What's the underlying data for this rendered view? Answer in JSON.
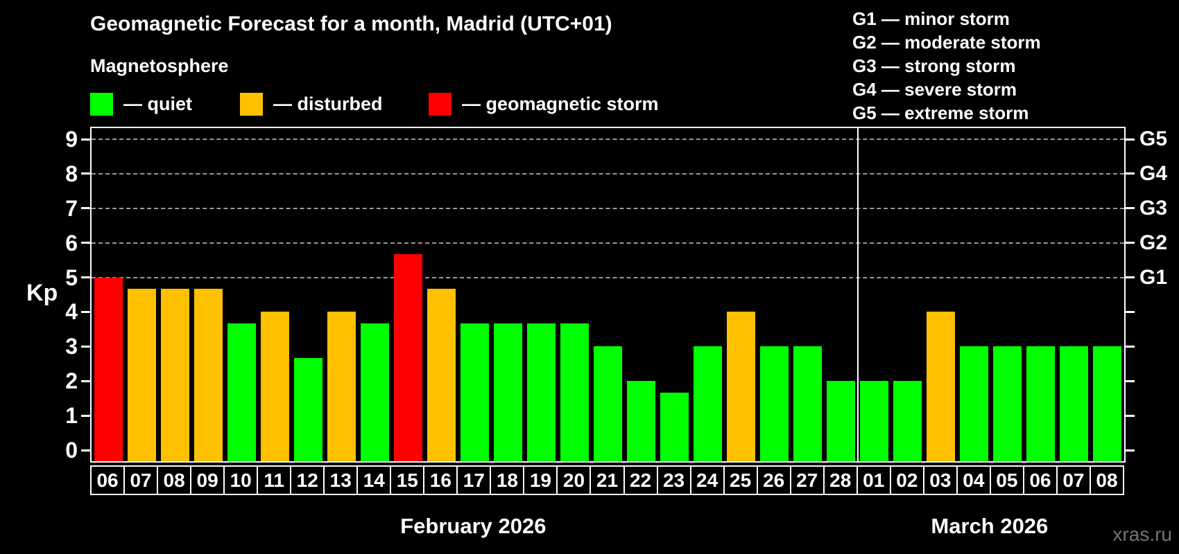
{
  "title": "Geomagnetic Forecast for a month, Madrid (UTC+01)",
  "subtitle": "Magnetosphere",
  "legend": {
    "items": [
      {
        "name": "quiet",
        "label": "— quiet",
        "color": "#00ff00"
      },
      {
        "name": "disturbed",
        "label": "— disturbed",
        "color": "#ffc000"
      },
      {
        "name": "storm",
        "label": "— geomagnetic storm",
        "color": "#ff0000"
      }
    ]
  },
  "g_legend": [
    "G1 — minor storm",
    "G2 — moderate storm",
    "G3 — strong storm",
    "G4 — severe storm",
    "G5 — extreme storm"
  ],
  "watermark": "xras.ru",
  "chart_data": {
    "type": "bar",
    "title": "Geomagnetic Forecast for a month, Madrid (UTC+01)",
    "ylabel": "Kp",
    "ylim": [
      0,
      9
    ],
    "yticks": [
      0,
      1,
      2,
      3,
      4,
      5,
      6,
      7,
      8,
      9
    ],
    "gridlines_at": [
      5,
      6,
      7,
      8,
      9
    ],
    "grid": "dashed",
    "legend_position": "top",
    "right_axis": [
      {
        "kp": 9,
        "label": "G5"
      },
      {
        "kp": 8,
        "label": "G4"
      },
      {
        "kp": 7,
        "label": "G3"
      },
      {
        "kp": 6,
        "label": "G2"
      },
      {
        "kp": 5,
        "label": "G1"
      }
    ],
    "status_colors": {
      "quiet": "#00ff00",
      "disturbed": "#ffc000",
      "storm": "#ff0000"
    },
    "months": [
      {
        "label": "February 2026",
        "bars": [
          {
            "day": "06",
            "kp": 5.0,
            "status": "storm"
          },
          {
            "day": "07",
            "kp": 4.67,
            "status": "disturbed"
          },
          {
            "day": "08",
            "kp": 4.67,
            "status": "disturbed"
          },
          {
            "day": "09",
            "kp": 4.67,
            "status": "disturbed"
          },
          {
            "day": "10",
            "kp": 3.67,
            "status": "quiet"
          },
          {
            "day": "11",
            "kp": 4.0,
            "status": "disturbed"
          },
          {
            "day": "12",
            "kp": 2.67,
            "status": "quiet"
          },
          {
            "day": "13",
            "kp": 4.0,
            "status": "disturbed"
          },
          {
            "day": "14",
            "kp": 3.67,
            "status": "quiet"
          },
          {
            "day": "15",
            "kp": 5.67,
            "status": "storm"
          },
          {
            "day": "16",
            "kp": 4.67,
            "status": "disturbed"
          },
          {
            "day": "17",
            "kp": 3.67,
            "status": "quiet"
          },
          {
            "day": "18",
            "kp": 3.67,
            "status": "quiet"
          },
          {
            "day": "19",
            "kp": 3.67,
            "status": "quiet"
          },
          {
            "day": "20",
            "kp": 3.67,
            "status": "quiet"
          },
          {
            "day": "21",
            "kp": 3.0,
            "status": "quiet"
          },
          {
            "day": "22",
            "kp": 2.0,
            "status": "quiet"
          },
          {
            "day": "23",
            "kp": 1.67,
            "status": "quiet"
          },
          {
            "day": "24",
            "kp": 3.0,
            "status": "quiet"
          },
          {
            "day": "25",
            "kp": 4.0,
            "status": "disturbed"
          },
          {
            "day": "26",
            "kp": 3.0,
            "status": "quiet"
          },
          {
            "day": "27",
            "kp": 3.0,
            "status": "quiet"
          },
          {
            "day": "28",
            "kp": 2.0,
            "status": "quiet"
          }
        ]
      },
      {
        "label": "March 2026",
        "bars": [
          {
            "day": "01",
            "kp": 2.0,
            "status": "quiet"
          },
          {
            "day": "02",
            "kp": 2.0,
            "status": "quiet"
          },
          {
            "day": "03",
            "kp": 4.0,
            "status": "disturbed"
          },
          {
            "day": "04",
            "kp": 3.0,
            "status": "quiet"
          },
          {
            "day": "05",
            "kp": 3.0,
            "status": "quiet"
          },
          {
            "day": "06",
            "kp": 3.0,
            "status": "quiet"
          },
          {
            "day": "07",
            "kp": 3.0,
            "status": "quiet"
          },
          {
            "day": "08",
            "kp": 3.0,
            "status": "quiet"
          }
        ]
      }
    ]
  }
}
